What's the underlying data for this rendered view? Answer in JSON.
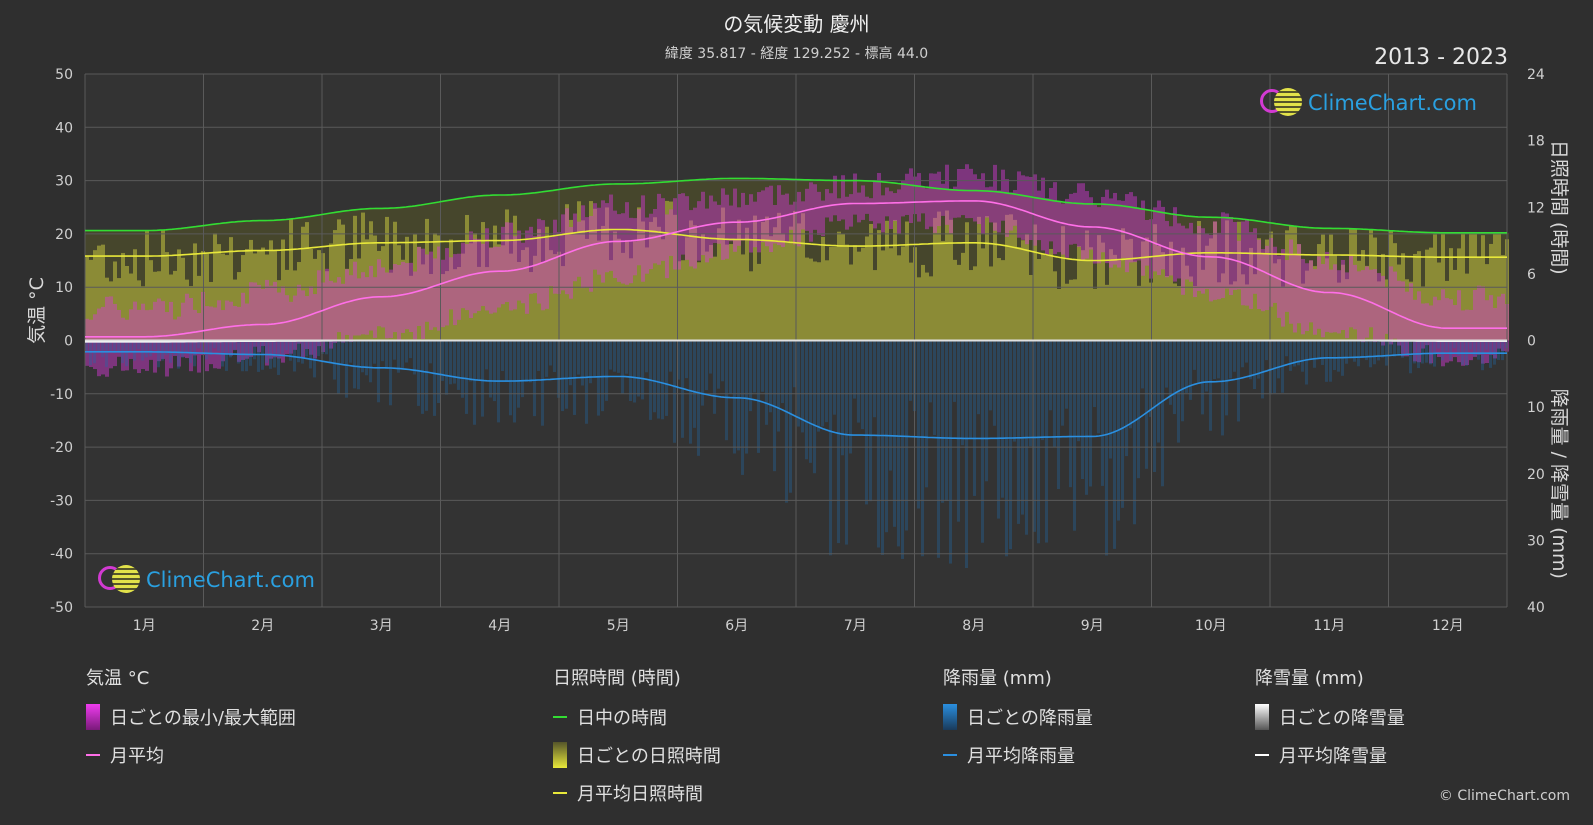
{
  "header": {
    "title": "の気候変動 慶州",
    "subtitle": "緯度 35.817 - 経度 129.252 - 標高 44.0",
    "period": "2013 - 2023"
  },
  "logo": {
    "text": "ClimeChart.com"
  },
  "copyright": "© ClimeChart.com",
  "colors": {
    "background": "#2f2f2f",
    "daylight": "#33dd33",
    "sunshine_avg": "#e8e83a",
    "sunshine_daily": "#a8a83a",
    "temp_avg": "#ff6fe8",
    "temp_range": "#d838d8",
    "rain_avg": "#2a8fe0",
    "rain_daily": "#1f6aa8",
    "snow_avg": "#ffffff"
  },
  "legend": {
    "temperature": {
      "heading": "気温 °C",
      "range_label": "日ごとの最小/最大範囲",
      "avg_label": "月平均"
    },
    "sunshine": {
      "heading": "日照時間 (時間)",
      "daylight_label": "日中の時間",
      "daily_label": "日ごとの日照時間",
      "avg_label": "月平均日照時間"
    },
    "rain": {
      "heading": "降雨量 (mm)",
      "daily_label": "日ごとの降雨量",
      "avg_label": "月平均降雨量"
    },
    "snow": {
      "heading": "降雪量 (mm)",
      "daily_label": "日ごとの降雪量",
      "avg_label": "月平均降雪量"
    }
  },
  "chart_data": {
    "type": "line",
    "categories": [
      "1月",
      "2月",
      "3月",
      "4月",
      "5月",
      "6月",
      "7月",
      "8月",
      "9月",
      "10月",
      "11月",
      "12月"
    ],
    "left_axis": {
      "label": "気温 °C",
      "range": [
        -50,
        50
      ],
      "ticks": [
        50,
        40,
        30,
        20,
        10,
        0,
        -10,
        -20,
        -30,
        -40,
        -50
      ]
    },
    "right_axis_top": {
      "label": "日照時間 (時間)",
      "range": [
        0,
        24
      ],
      "ticks": [
        24,
        18,
        12,
        6,
        0
      ]
    },
    "right_axis_bottom": {
      "label": "降雨量 / 降雪量 (mm)",
      "range": [
        0,
        40
      ],
      "ticks": [
        10,
        20,
        30,
        40
      ]
    },
    "grid": true,
    "series": [
      {
        "name": "日中の時間",
        "axis": "sunshine",
        "values": [
          9.9,
          10.8,
          11.9,
          13.1,
          14.1,
          14.6,
          14.4,
          13.5,
          12.3,
          11.1,
          10.1,
          9.7
        ]
      },
      {
        "name": "月平均日照時間",
        "axis": "sunshine",
        "values": [
          7.6,
          8.1,
          8.8,
          9.0,
          10.0,
          9.1,
          8.5,
          8.8,
          7.2,
          7.9,
          7.7,
          7.5
        ]
      },
      {
        "name": "月平均",
        "axis": "temperature",
        "values": [
          0.7,
          3.0,
          8.2,
          13.0,
          18.6,
          22.2,
          25.7,
          26.2,
          21.3,
          15.7,
          9.0,
          2.3
        ]
      },
      {
        "name": "月平均降雨量",
        "axis": "precipitation",
        "values": [
          1.7,
          2.1,
          4.1,
          6.1,
          5.4,
          8.6,
          14.2,
          14.7,
          14.4,
          6.2,
          2.6,
          1.9
        ]
      },
      {
        "name": "月平均降雪量",
        "axis": "precipitation",
        "values": [
          0.2,
          0.1,
          0.0,
          0.0,
          0.0,
          0.0,
          0.0,
          0.0,
          0.0,
          0.0,
          0.0,
          0.1
        ]
      }
    ],
    "daily_temperature_range": {
      "min": [
        -5,
        -3,
        1,
        6,
        12,
        17,
        22,
        22,
        16,
        9,
        2,
        -3
      ],
      "max": [
        6,
        9,
        14,
        20,
        25,
        27,
        29,
        31,
        27,
        22,
        15,
        8
      ]
    }
  }
}
